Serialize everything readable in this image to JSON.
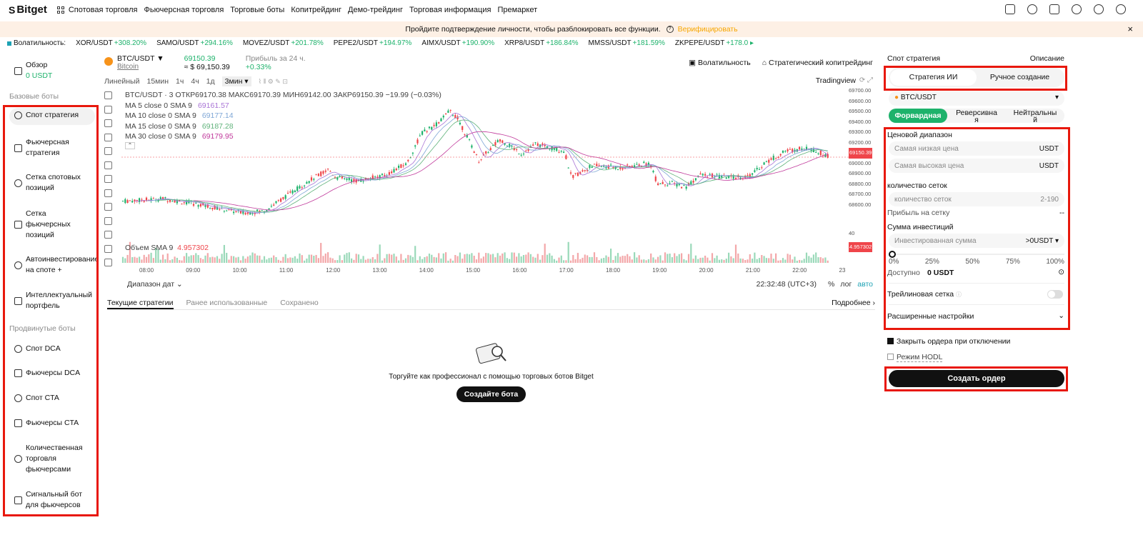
{
  "nav": {
    "logo": "Bitget",
    "items": [
      "Спотовая торговля",
      "Фьючерсная торговля",
      "Торговые боты",
      "Копитрейдинг",
      "Демо-трейдинг",
      "Торговая информация",
      "Премаркет"
    ]
  },
  "banner": {
    "text": "Пройдите подтверждение личности, чтобы разблокировать все функции.",
    "action": "Верифицировать",
    "close": "×"
  },
  "ticker": {
    "label": "Волатильность:",
    "items": [
      {
        "sym": "XOR/USDT",
        "pct": "+308.20%"
      },
      {
        "sym": "SAMO/USDT",
        "pct": "+294.16%"
      },
      {
        "sym": "MOVEZ/USDT",
        "pct": "+201.78%"
      },
      {
        "sym": "PEPE2/USDT",
        "pct": "+194.97%"
      },
      {
        "sym": "AIMX/USDT",
        "pct": "+190.90%"
      },
      {
        "sym": "XRP8/USDT",
        "pct": "+186.84%"
      },
      {
        "sym": "MMSS/USDT",
        "pct": "+181.59%"
      },
      {
        "sym": "ZKPEPE/USDT",
        "pct": "+178.0 ▸"
      }
    ]
  },
  "sidebar": {
    "overview": "Обзор",
    "overview_value": "0 USDT",
    "basic_head": "Базовые боты",
    "advanced_head": "Продвинутые боты",
    "basic": [
      "Спот стратегия",
      "Фьючерсная\nстратегия",
      "Сетка спотовых\nпозиций",
      "Сетка\nфьючерсных\nпозиций",
      "Автоинвестирование\nна споте +",
      "Интеллектуальный\nпортфель"
    ],
    "advanced": [
      "Спот DCA",
      "Фьючерсы DCA",
      "Спот CTA",
      "Фьючерсы CTA",
      "Количественная\nторговля\nфьючерсами",
      "Сигнальный бот\nдля фьючерсов"
    ]
  },
  "chart": {
    "pair": "BTC/USDT",
    "pair_sub": "Bitcoin",
    "price": "69150.39",
    "price_usd": "≈ $ 69,150.39",
    "pnl_label": "Прибыль за 24 ч.",
    "pnl": "+0.33%",
    "volatility_btn": "Волатильность",
    "copy_btn": "Стратегический копитрейдинг",
    "timeframes": [
      "Линейный",
      "15мин",
      "1ч",
      "4ч",
      "1д"
    ],
    "tf_selected": "3мин ▾",
    "tradingview": "Tradingview",
    "ohlc": "BTC/USDT · 3   ОТКР69170.38  МАКС69170.39  МИН69142.00  ЗАКР69150.39  −19.99 (−0.03%)",
    "ma": [
      {
        "label": "MA 5 close 0 SMA 9",
        "val": "69161.57",
        "color": "#a974d6"
      },
      {
        "label": "MA 10 close 0 SMA 9",
        "val": "69177.14",
        "color": "#7fa7d6"
      },
      {
        "label": "MA 15 close 0 SMA 9",
        "val": "69187.28",
        "color": "#5fb27a"
      },
      {
        "label": "MA 30 close 0 SMA 9",
        "val": "69179.95",
        "color": "#c0399b"
      }
    ],
    "volume_label": "Объем SMA 9",
    "volume_val": "4.957302",
    "y_ticks": [
      "69700.00",
      "69600.00",
      "69500.00",
      "69400.00",
      "69300.00",
      "69200.00",
      "69150.39",
      "69000.00",
      "68900.00",
      "68800.00",
      "68700.00",
      "68600.00"
    ],
    "x_ticks": [
      "08:00",
      "09:00",
      "10:00",
      "11:00",
      "12:00",
      "13:00",
      "14:00",
      "15:00",
      "16:00",
      "17:00",
      "18:00",
      "19:00",
      "20:00",
      "21:00",
      "22:00",
      "23"
    ],
    "range_label": "Диапазон дат ⌄",
    "clock": "22:32:48 (UTC+3)",
    "pct": "%",
    "log": "лог",
    "auto": "авто"
  },
  "strategies": {
    "tabs": [
      "Текущие стратегии",
      "Ранее использованные",
      "Сохранено"
    ],
    "more": "Подробнее ›",
    "empty_text": "Торгуйте как профессионал с помощью торговых ботов Bitget",
    "create_bot": "Создайте бота"
  },
  "panel": {
    "title": "Спот стратегия",
    "desc": "Описание",
    "seg": [
      "Стратегия ИИ",
      "Ручное создание"
    ],
    "pair": "BTC/USDT",
    "dirs": [
      "Форвардная",
      "Реверсивна\nя",
      "Нейтральны\nй"
    ],
    "price_range": "Ценовой диапазон",
    "low_ph": "Самая низкая цена",
    "high_ph": "Самая высокая цена",
    "usdt": "USDT",
    "grid_count": "количество сеток",
    "grid_ph": "количество сеток",
    "grid_range": "2-190",
    "profit_per_grid": "Прибыль на сетку",
    "profit_val": "--",
    "invest": "Сумма инвестиций",
    "invest_ph": "Инвестированная сумма",
    "invest_unit": ">0USDT ▾",
    "pcts": [
      "0%",
      "25%",
      "50%",
      "75%",
      "100%"
    ],
    "available": "Доступно",
    "available_val": "0 USDT",
    "trailing": "Трейлиновая сетка",
    "advanced": "Расширенные настройки",
    "close_orders": "Закрыть ордера при отключении",
    "hodl": "Режим HODL",
    "create_order": "Создать ордер"
  }
}
